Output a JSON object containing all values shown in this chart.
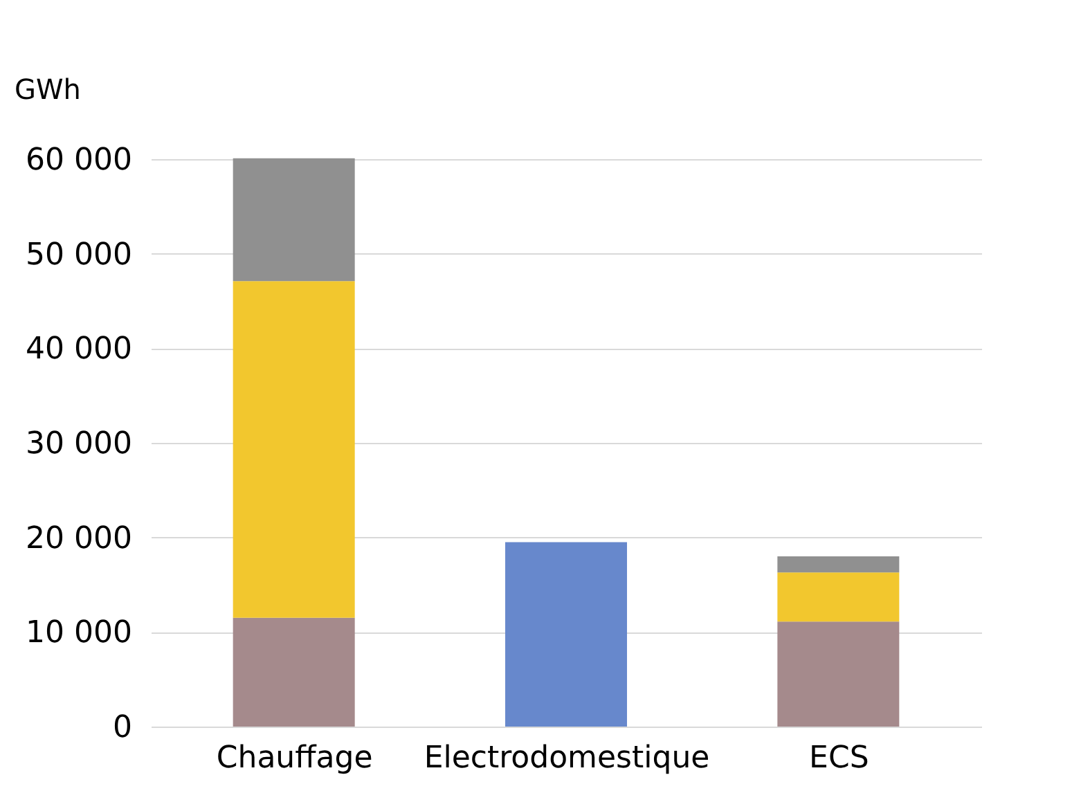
{
  "chart_data": {
    "type": "bar",
    "stacked": true,
    "ylabel": "GWh",
    "categories": [
      "Chauffage",
      "Electrodomestique",
      "ECS"
    ],
    "series": [
      {
        "color": "#a58a8c",
        "values": [
          11500,
          null,
          11100
        ]
      },
      {
        "color": "#6788cc",
        "values": [
          null,
          19500,
          null
        ]
      },
      {
        "color": "#f2c72e",
        "values": [
          35600,
          null,
          5200
        ]
      },
      {
        "color": "#909090",
        "values": [
          13000,
          null,
          1700
        ]
      }
    ],
    "ylim": [
      0,
      60000
    ],
    "yticks": [
      0,
      {
        "value": 10000,
        "label": "10 000"
      },
      {
        "value": 20000,
        "label": "20 000"
      },
      {
        "value": 30000,
        "label": "30 000"
      },
      {
        "value": 40000,
        "label": "40 000"
      },
      {
        "value": 50000,
        "label": "50 000"
      },
      {
        "value": 60000,
        "label": "60 000"
      }
    ],
    "grid": "y"
  }
}
